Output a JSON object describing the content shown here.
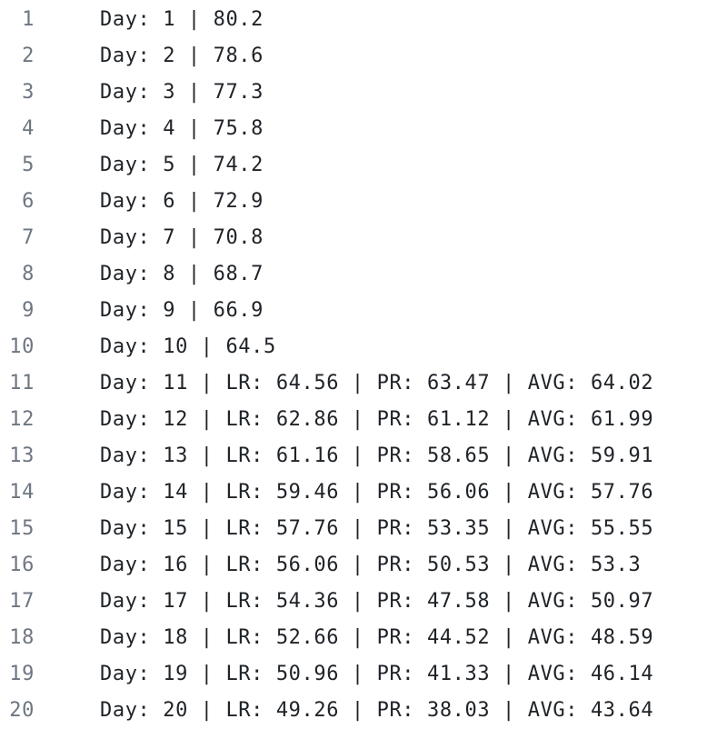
{
  "editor": {
    "lines": [
      {
        "number": "1",
        "text": "Day: 1 | 80.2"
      },
      {
        "number": "2",
        "text": "Day: 2 | 78.6"
      },
      {
        "number": "3",
        "text": "Day: 3 | 77.3"
      },
      {
        "number": "4",
        "text": "Day: 4 | 75.8"
      },
      {
        "number": "5",
        "text": "Day: 5 | 74.2"
      },
      {
        "number": "6",
        "text": "Day: 6 | 72.9"
      },
      {
        "number": "7",
        "text": "Day: 7 | 70.8"
      },
      {
        "number": "8",
        "text": "Day: 8 | 68.7"
      },
      {
        "number": "9",
        "text": "Day: 9 | 66.9"
      },
      {
        "number": "10",
        "text": "Day: 10 | 64.5"
      },
      {
        "number": "11",
        "text": "Day: 11 | LR: 64.56 | PR: 63.47 | AVG: 64.02"
      },
      {
        "number": "12",
        "text": "Day: 12 | LR: 62.86 | PR: 61.12 | AVG: 61.99"
      },
      {
        "number": "13",
        "text": "Day: 13 | LR: 61.16 | PR: 58.65 | AVG: 59.91"
      },
      {
        "number": "14",
        "text": "Day: 14 | LR: 59.46 | PR: 56.06 | AVG: 57.76"
      },
      {
        "number": "15",
        "text": "Day: 15 | LR: 57.76 | PR: 53.35 | AVG: 55.55"
      },
      {
        "number": "16",
        "text": "Day: 16 | LR: 56.06 | PR: 50.53 | AVG: 53.3"
      },
      {
        "number": "17",
        "text": "Day: 17 | LR: 54.36 | PR: 47.58 | AVG: 50.97"
      },
      {
        "number": "18",
        "text": "Day: 18 | LR: 52.66 | PR: 44.52 | AVG: 48.59"
      },
      {
        "number": "19",
        "text": "Day: 19 | LR: 50.96 | PR: 41.33 | AVG: 46.14"
      },
      {
        "number": "20",
        "text": "Day: 20 | LR: 49.26 | PR: 38.03 | AVG: 43.64"
      }
    ]
  }
}
